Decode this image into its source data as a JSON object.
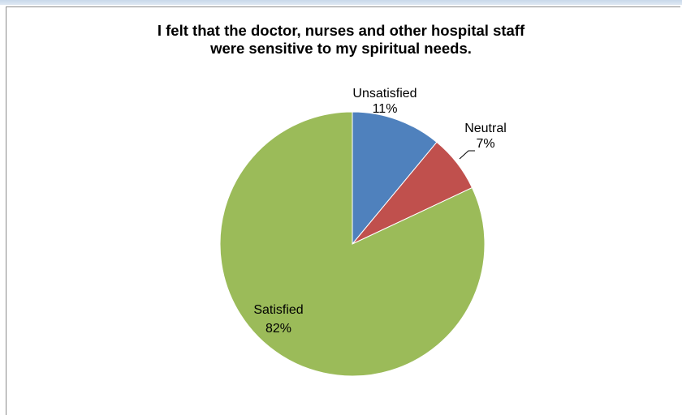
{
  "chart_data": {
    "type": "pie",
    "title_lines": [
      "I felt that the doctor, nurses and other hospital staff",
      "were sensitive to my spiritual needs."
    ],
    "slices": [
      {
        "label": "Unsatisfied",
        "pct_label": "11%",
        "value": 11,
        "color": "#4f81bd"
      },
      {
        "label": "Neutral",
        "pct_label": "7%",
        "value": 7,
        "color": "#c0504d"
      },
      {
        "label": "Satisfied",
        "pct_label": "82%",
        "value": 82,
        "color": "#9bbb59"
      }
    ],
    "start_angle": "12 o'clock",
    "direction": "clockwise",
    "legend": "none"
  }
}
